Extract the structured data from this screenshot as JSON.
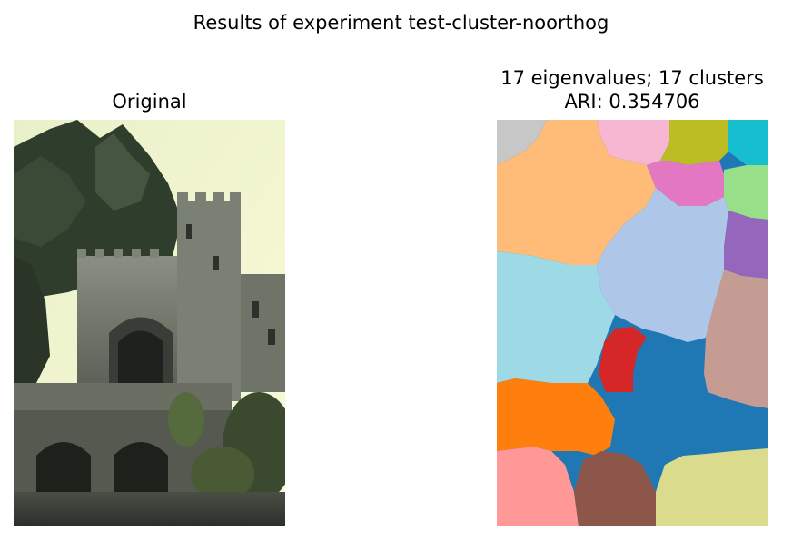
{
  "figure": {
    "suptitle": "Results of experiment test-cluster-noorthog"
  },
  "left_panel": {
    "title": "Original",
    "image_description_icon": "castle-photo"
  },
  "right_panel": {
    "title_line1": "17 eigenvalues; 17 clusters",
    "title_line2": "ARI: 0.354706",
    "cluster_colors": [
      "#c7c7c7",
      "#ffbb78",
      "#f7b6d2",
      "#bcbd22",
      "#17becf",
      "#e377c2",
      "#98df8a",
      "#aec7e8",
      "#9467bd",
      "#9edae5",
      "#c49c94",
      "#d62728",
      "#1f77b4",
      "#ff7f0e",
      "#ff9896",
      "#8c564b",
      "#dbdb8d"
    ]
  }
}
